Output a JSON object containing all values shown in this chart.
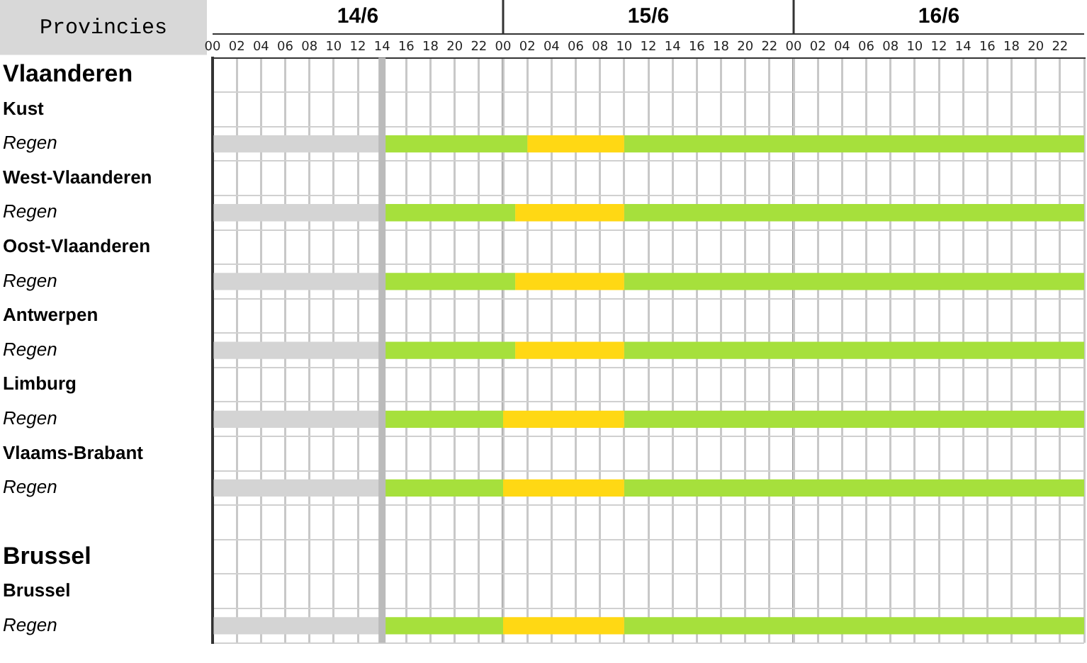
{
  "chart_data": {
    "type": "bar",
    "orientation": "horizontal",
    "stacked": true,
    "ylabel": "Provincies",
    "categories": [
      "Vlaanderen",
      "Kust",
      "Regen",
      "West-Vlaanderen",
      "Regen",
      "Oost-Vlaanderen",
      "Regen",
      "Antwerpen",
      "Regen",
      "Limburg",
      "Regen",
      "Vlaams-Brabant",
      "Regen",
      null,
      "Brussel",
      "Brussel",
      "Regen"
    ],
    "series": [
      {
        "color": "#d4d4d4",
        "values": [
          null,
          null,
          14,
          null,
          14,
          null,
          14,
          null,
          14,
          null,
          14,
          null,
          14,
          null,
          null,
          null,
          14
        ]
      },
      {
        "color": "#a6e03c",
        "values": [
          null,
          null,
          12,
          null,
          11,
          null,
          11,
          null,
          11,
          null,
          10,
          null,
          10,
          null,
          null,
          null,
          10
        ]
      },
      {
        "color": "#ffd814",
        "values": [
          null,
          null,
          8,
          null,
          9,
          null,
          9,
          null,
          9,
          null,
          10,
          null,
          10,
          null,
          null,
          null,
          10
        ]
      },
      {
        "color": "#a6e03c",
        "values": [
          null,
          null,
          38,
          null,
          38,
          null,
          38,
          null,
          38,
          null,
          38,
          null,
          38,
          null,
          null,
          null,
          38
        ]
      }
    ],
    "xlim": [
      0,
      72
    ],
    "xticks": [
      {
        "value": 0,
        "label": "00"
      },
      {
        "value": 2,
        "label": "02"
      },
      {
        "value": 4,
        "label": "04"
      },
      {
        "value": 6,
        "label": "06"
      },
      {
        "value": 8,
        "label": "08"
      },
      {
        "value": 10,
        "label": "10"
      },
      {
        "value": 12,
        "label": "12"
      },
      {
        "value": 14,
        "label": "14"
      },
      {
        "value": 16,
        "label": "16"
      },
      {
        "value": 18,
        "label": "18"
      },
      {
        "value": 20,
        "label": "20"
      },
      {
        "value": 22,
        "label": "22"
      },
      {
        "value": 24,
        "label": "00"
      },
      {
        "value": 26,
        "label": "02"
      },
      {
        "value": 28,
        "label": "04"
      },
      {
        "value": 30,
        "label": "06"
      },
      {
        "value": 32,
        "label": "08"
      },
      {
        "value": 34,
        "label": "10"
      },
      {
        "value": 36,
        "label": "12"
      },
      {
        "value": 38,
        "label": "14"
      },
      {
        "value": 40,
        "label": "16"
      },
      {
        "value": 42,
        "label": "18"
      },
      {
        "value": 44,
        "label": "20"
      },
      {
        "value": 46,
        "label": "22"
      },
      {
        "value": 48,
        "label": "00"
      },
      {
        "value": 50,
        "label": "02"
      },
      {
        "value": 52,
        "label": "04"
      },
      {
        "value": 54,
        "label": "06"
      },
      {
        "value": 56,
        "label": "08"
      },
      {
        "value": 58,
        "label": "10"
      },
      {
        "value": 60,
        "label": "12"
      },
      {
        "value": 62,
        "label": "14"
      },
      {
        "value": 64,
        "label": "16"
      },
      {
        "value": 66,
        "label": "18"
      },
      {
        "value": 68,
        "label": "20"
      },
      {
        "value": 70,
        "label": "22"
      },
      {
        "value": 72,
        "label": null
      }
    ],
    "annotations": [
      "14/6",
      "15/6",
      "16/6"
    ],
    "ref_lines": [
      {
        "axis": "x",
        "value": 14,
        "color": "#bbbbbb"
      }
    ],
    "grid": true,
    "legend": false
  }
}
